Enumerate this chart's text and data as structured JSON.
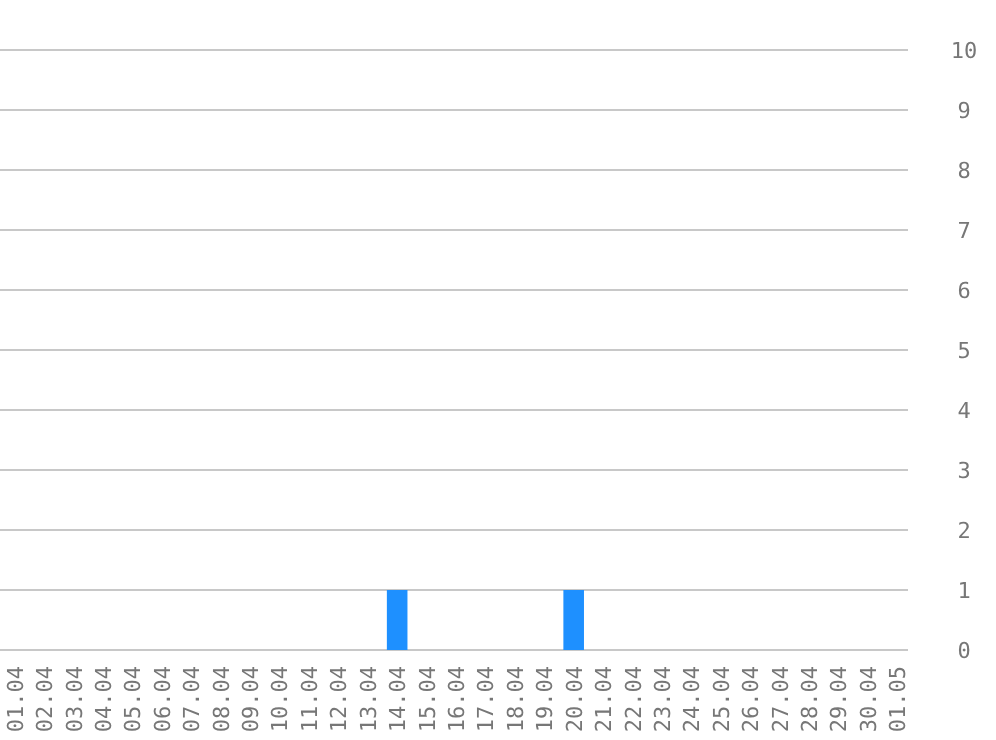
{
  "chart_data": {
    "type": "bar",
    "categories": [
      "01.04",
      "02.04",
      "03.04",
      "04.04",
      "05.04",
      "06.04",
      "07.04",
      "08.04",
      "09.04",
      "10.04",
      "11.04",
      "12.04",
      "13.04",
      "14.04",
      "15.04",
      "16.04",
      "17.04",
      "18.04",
      "19.04",
      "20.04",
      "21.04",
      "22.04",
      "23.04",
      "24.04",
      "25.04",
      "26.04",
      "27.04",
      "28.04",
      "29.04",
      "30.04",
      "01.05"
    ],
    "values": [
      0,
      0,
      0,
      0,
      0,
      0,
      0,
      0,
      0,
      0,
      0,
      0,
      0,
      1,
      0,
      0,
      0,
      0,
      0,
      1,
      0,
      0,
      0,
      0,
      0,
      0,
      0,
      0,
      0,
      0,
      0
    ],
    "color": "#1e90ff",
    "ylim": [
      0,
      10
    ],
    "yticks": [
      0,
      1,
      2,
      3,
      4,
      5,
      6,
      7,
      8,
      9,
      10
    ],
    "grid": "y"
  }
}
